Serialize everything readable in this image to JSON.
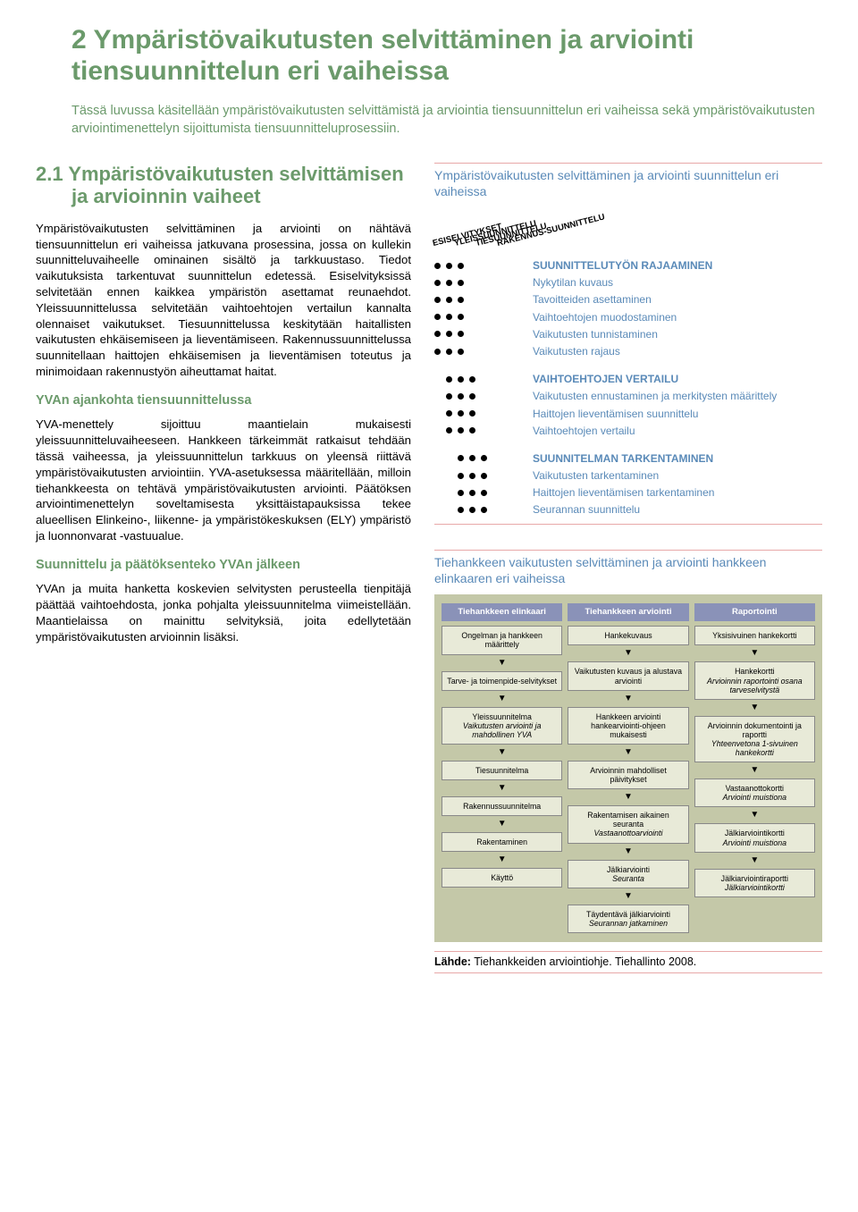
{
  "chapter": {
    "number": "2",
    "title": "Ympäristövaikutusten selvittäminen ja arviointi tiensuunnittelun eri vaiheissa",
    "intro": "Tässä luvussa käsitellään ympäristövaikutusten selvittämistä ja arviointia tiensuunnittelun eri vaiheissa sekä ympäristövaikutusten arviointimenettelyn sijoittumista tiensuunnitteluprosessiin."
  },
  "section": {
    "number": "2.1",
    "title": "Ympäristövaikutusten selvittämisen ja arvioinnin vaiheet",
    "p1": "Ympäristövaikutusten selvittäminen ja arviointi on nähtävä tiensuunnittelun eri vaiheissa jatkuvana prosessina, jossa on kullekin suunnitteluvaiheelle ominainen sisältö ja tarkkuustaso. Tiedot vaikutuksista tarkentuvat suunnittelun edetessä. Esiselvityksissä selvitetään ennen kaikkea ympäristön asettamat reunaehdot. Yleissuunnittelussa selvitetään vaihtoehtojen vertailun kannalta olennaiset vaikutukset. Tiesuunnittelussa keskitytään haitallisten vaikutusten ehkäisemiseen ja lieventämiseen. Rakennussuunnittelussa suunnitellaan haittojen ehkäisemisen ja lieventämisen toteutus ja minimoidaan rakennustyön aiheuttamat haitat.",
    "sub1_title": "YVAn ajankohta tiensuunnittelussa",
    "p2": "YVA-menettely sijoittuu maantielain mukaisesti yleissuunnitteluvaiheeseen. Hankkeen tärkeimmät ratkaisut tehdään tässä vaiheessa, ja yleissuunnittelun tarkkuus on yleensä riittävä ympäristövaikutusten arviointiin. YVA-asetuksessa määritellään, milloin tiehankkeesta on tehtävä ympäristövaikutusten arviointi. Päätöksen arviointimenettelyn soveltamisesta yksittäistapauksissa tekee alueellisen Elinkeino-, liikenne- ja ympäristökeskuksen (ELY) ympäristö ja luonnonvarat -vastuualue.",
    "sub2_title": "Suunnittelu ja päätöksenteko YVAn jälkeen",
    "p3": "YVAn ja muita hanketta koskevien selvitysten perusteella tienpitäjä päättää vaihtoehdosta, jonka pohjalta yleissuunnitelma viimeistellään. Maantielaissa on mainittu selvityksiä, joita edellytetään ympäristövaikutusten arvioinnin lisäksi."
  },
  "matrix": {
    "title": "Ympäristövaikutusten selvittäminen ja arviointi suunnittelun eri vaiheissa",
    "stages": [
      "ESISELVITYKSET",
      "YLEISSUUNNITTELU",
      "TIESUUNNITTELU",
      "RAKENNUS-SUUNNITTELU"
    ],
    "groups": [
      {
        "header": "SUUNNITTELUTYÖN RAJAAMINEN",
        "header_dots": [
          1,
          1,
          1,
          0,
          0
        ],
        "rows": [
          {
            "label": "Nykytilan kuvaus",
            "dots": [
              1,
              1,
              1,
              0,
              0
            ]
          },
          {
            "label": "Tavoitteiden asettaminen",
            "dots": [
              1,
              1,
              1,
              0,
              0
            ]
          },
          {
            "label": "Vaihtoehtojen muodostaminen",
            "dots": [
              1,
              1,
              1,
              0,
              0
            ]
          },
          {
            "label": "Vaikutusten tunnistaminen",
            "dots": [
              1,
              1,
              1,
              0,
              0
            ]
          },
          {
            "label": "Vaikutusten rajaus",
            "dots": [
              1,
              1,
              1,
              0,
              0
            ]
          }
        ]
      },
      {
        "header": "VAIHTOEHTOJEN VERTAILU",
        "header_dots": [
          0,
          1,
          1,
          1,
          0
        ],
        "rows": [
          {
            "label": "Vaikutusten ennustaminen ja merkitysten määrittely",
            "dots": [
              0,
              1,
              1,
              1,
              0
            ]
          },
          {
            "label": "Haittojen lieventämisen suunnittelu",
            "dots": [
              0,
              1,
              1,
              1,
              0
            ]
          },
          {
            "label": "Vaihtoehtojen vertailu",
            "dots": [
              0,
              1,
              1,
              1,
              0
            ]
          }
        ]
      },
      {
        "header": "SUUNNITELMAN TARKENTAMINEN",
        "header_dots": [
          0,
          0,
          1,
          1,
          1
        ],
        "rows": [
          {
            "label": "Vaikutusten tarkentaminen",
            "dots": [
              0,
              0,
              1,
              1,
              1
            ]
          },
          {
            "label": "Haittojen lieventämisen tarkentaminen",
            "dots": [
              0,
              0,
              1,
              1,
              1
            ]
          },
          {
            "label": "Seurannan suunnittelu",
            "dots": [
              0,
              0,
              1,
              1,
              1
            ]
          }
        ]
      }
    ]
  },
  "lifecycle": {
    "title": "Tiehankkeen vaikutusten selvittäminen ja arviointi hankkeen elinkaaren eri vaiheissa",
    "columns": [
      {
        "header": "Tiehankkeen elinkaari",
        "cells": [
          "Ongelman ja hankkeen määrittely",
          "Tarve- ja toimenpide-selvitykset",
          "Yleissuunnitelma\nVaikutusten arviointi ja mahdollinen YVA",
          "Tiesuunnitelma",
          "Rakennussuunnitelma",
          "Rakentaminen",
          "Käyttö"
        ]
      },
      {
        "header": "Tiehankkeen arviointi",
        "cells": [
          "Hankekuvaus",
          "Vaikutusten kuvaus ja alustava arviointi",
          "Hankkeen arviointi hankearviointi-ohjeen mukaisesti",
          "Arvioinnin mahdolliset päivitykset",
          "Rakentamisen aikainen seuranta\nVastaanottoarviointi",
          "Jälkiarviointi\nSeuranta",
          "Täydentävä jälkiarviointi\nSeurannan jatkaminen"
        ]
      },
      {
        "header": "Raportointi",
        "cells": [
          "Yksisivuinen hankekortti",
          "Hankekortti\nArvioinnin raportointi osana tarveselvitystä",
          "Arvioinnin dokumentointi ja raportti\nYhteenvetona 1-sivuinen hankekortti",
          "Vastaanottokortti\nArviointi muistiona",
          "Jälkiarviointikortti\nArviointi muistiona",
          "Jälkiarviointiraportti\nJälkiarviointikortti"
        ]
      }
    ],
    "source_label": "Lähde:",
    "source_text": "Tiehankkeiden arviointiohje. Tiehallinto 2008."
  },
  "colors": {
    "green": "#6b9a6b",
    "blue": "#5a8ab8",
    "pink_rule": "#e8a8a8",
    "diagram_bg": "#c4c8a8",
    "diagram_hdr": "#8a92b8",
    "diagram_cell": "#e8ead8"
  }
}
